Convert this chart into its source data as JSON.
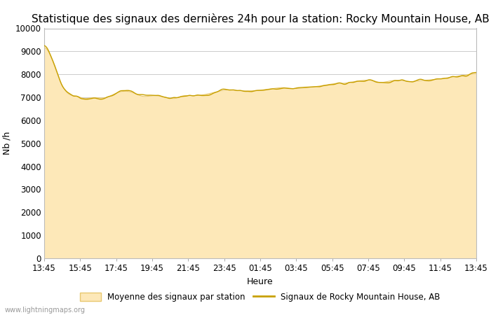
{
  "title": "Statistique des signaux des dernières 24h pour la station: Rocky Mountain House, AB",
  "ylabel": "Nb /h",
  "xlabel": "Heure",
  "watermark": "www.lightningmaps.org",
  "legend_fill_label": "Moyenne des signaux par station",
  "legend_line_label": "Signaux de Rocky Mountain House, AB",
  "fill_color": "#fde8b8",
  "fill_edge_color": "#e8c870",
  "line_color": "#c8a000",
  "bg_color": "#ffffff",
  "grid_color": "#cccccc",
  "ylim": [
    0,
    10000
  ],
  "yticks": [
    0,
    1000,
    2000,
    3000,
    4000,
    5000,
    6000,
    7000,
    8000,
    9000,
    10000
  ],
  "xtick_labels": [
    "13:45",
    "15:45",
    "17:45",
    "19:45",
    "21:45",
    "23:45",
    "01:45",
    "03:45",
    "05:45",
    "07:45",
    "09:45",
    "11:45",
    "13:45"
  ],
  "title_fontsize": 11,
  "axis_fontsize": 9,
  "tick_fontsize": 8.5,
  "watermark_fontsize": 7
}
